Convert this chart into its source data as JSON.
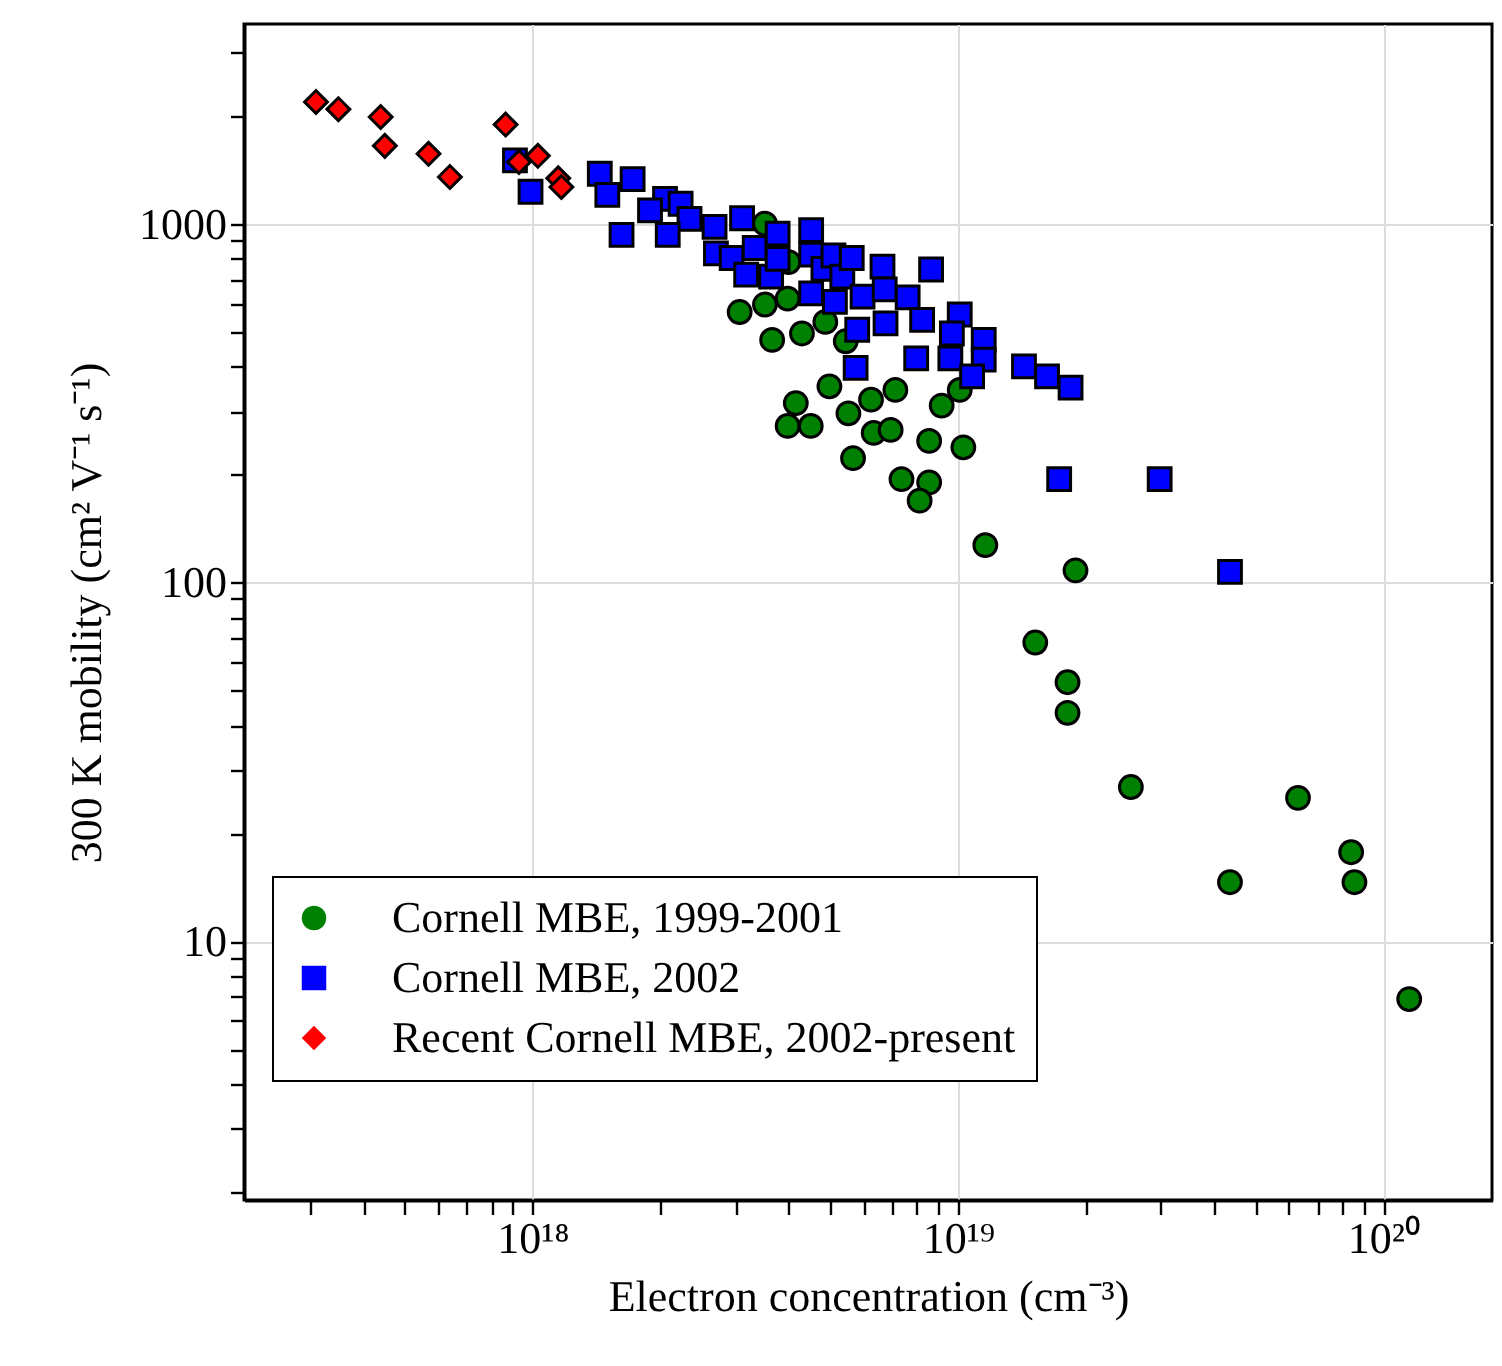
{
  "chart_data": {
    "type": "scatter",
    "xlabel": "Electron concentration (cm⁻³)",
    "ylabel": "300 K mobility (cm² V⁻¹ s⁻¹)",
    "log": "xy",
    "grid": true,
    "legend": "bottom left",
    "xlim": [
      2.1e+17,
      1.8e+20
    ],
    "ylim": [
      1.9,
      3600
    ],
    "xticks": [
      {
        "value": 3e+17,
        "label": null
      },
      {
        "value": 4e+17,
        "label": null
      },
      {
        "value": 5e+17,
        "label": null
      },
      {
        "value": 6e+17,
        "label": null
      },
      {
        "value": 7e+17,
        "label": null
      },
      {
        "value": 8e+17,
        "label": null
      },
      {
        "value": 9e+17,
        "label": null
      },
      {
        "value": 1e+18,
        "label": "10¹⁸"
      },
      {
        "value": 2e+18,
        "label": null
      },
      {
        "value": 3e+18,
        "label": null
      },
      {
        "value": 4e+18,
        "label": null
      },
      {
        "value": 5e+18,
        "label": null
      },
      {
        "value": 6e+18,
        "label": null
      },
      {
        "value": 7e+18,
        "label": null
      },
      {
        "value": 8e+18,
        "label": null
      },
      {
        "value": 9e+18,
        "label": null
      },
      {
        "value": 1e+19,
        "label": "10¹⁹"
      },
      {
        "value": 2e+19,
        "label": null
      },
      {
        "value": 3e+19,
        "label": null
      },
      {
        "value": 4e+19,
        "label": null
      },
      {
        "value": 5e+19,
        "label": null
      },
      {
        "value": 6e+19,
        "label": null
      },
      {
        "value": 7e+19,
        "label": null
      },
      {
        "value": 8e+19,
        "label": null
      },
      {
        "value": 9e+19,
        "label": null
      },
      {
        "value": 1e+20,
        "label": "10²⁰"
      }
    ],
    "yticks": [
      {
        "value": 2,
        "label": null
      },
      {
        "value": 3,
        "label": null
      },
      {
        "value": 4,
        "label": null
      },
      {
        "value": 5,
        "label": null
      },
      {
        "value": 6,
        "label": null
      },
      {
        "value": 7,
        "label": null
      },
      {
        "value": 8,
        "label": null
      },
      {
        "value": 9,
        "label": null
      },
      10,
      {
        "value": 20,
        "label": null
      },
      {
        "value": 30,
        "label": null
      },
      {
        "value": 40,
        "label": null
      },
      {
        "value": 50,
        "label": null
      },
      {
        "value": 60,
        "label": null
      },
      {
        "value": 70,
        "label": null
      },
      {
        "value": 80,
        "label": null
      },
      {
        "value": 90,
        "label": null
      },
      100,
      {
        "value": 200,
        "label": null
      },
      {
        "value": 300,
        "label": null
      },
      {
        "value": 400,
        "label": null
      },
      {
        "value": 500,
        "label": null
      },
      {
        "value": 600,
        "label": null
      },
      {
        "value": 700,
        "label": null
      },
      {
        "value": 800,
        "label": null
      },
      {
        "value": 900,
        "label": null
      },
      1000,
      {
        "value": 2000,
        "label": null
      },
      {
        "value": 3000,
        "label": null
      }
    ],
    "series": [
      {
        "name": "Cornell MBE, 1999-2001",
        "color": "#008000",
        "marker": "circle",
        "x": [
          3.52e+18,
          4e+18,
          3.07e+18,
          3.52e+18,
          3.98e+18,
          3.66e+18,
          4.3e+18,
          4.88e+18,
          5.45e+18,
          4.16e+18,
          3.98e+18,
          4.51e+18,
          4.99e+18,
          5.53e+18,
          6.25e+18,
          7.13e+18,
          6.34e+18,
          6.95e+18,
          5.67e+18,
          8.56e+18,
          9.16e+18,
          1.01e+19,
          1.03e+19,
          7.37e+18,
          8.56e+18,
          8.13e+18,
          1.16e+19,
          1.89e+19,
          1.52e+19,
          1.81e+19,
          1.81e+19,
          2.55e+19,
          6.3e+19,
          8.4e+19,
          8.55e+19,
          4.36e+19,
          1.15e+20
        ],
        "values": [
          1000,
          781,
          567,
          595,
          618,
          474,
          494,
          532,
          470,
          316,
          273,
          273,
          352,
          296,
          323,
          344,
          261,
          266,
          222,
          248,
          311,
          344,
          238,
          194,
          190,
          169,
          127,
          108,
          68,
          52.7,
          43.3,
          26.9,
          25.1,
          17.7,
          14.6,
          14.6,
          6.9
        ]
      },
      {
        "name": "Cornell MBE, 2002",
        "color": "#0000ff",
        "marker": "square",
        "x": [
          9.1e+17,
          9.9e+17,
          1.44e+18,
          1.5e+18,
          1.72e+18,
          1.62e+18,
          2.05e+18,
          2.23e+18,
          1.89e+18,
          2.34e+18,
          2.08e+18,
          2.68e+18,
          3.11e+18,
          2.7e+18,
          2.94e+18,
          3.18e+18,
          3.33e+18,
          3.64e+18,
          3.77e+18,
          3.77e+18,
          4.52e+18,
          4.52e+18,
          4.83e+18,
          5.1e+18,
          5.35e+18,
          5.63e+18,
          4.52e+18,
          5.14e+18,
          5.97e+18,
          5.8e+18,
          5.75e+18,
          6.65e+18,
          8.65e+18,
          6.73e+18,
          7.62e+18,
          6.76e+18,
          8.24e+18,
          1.01e+19,
          9.68e+18,
          1.15e+19,
          1.15e+19,
          7.98e+18,
          9.6e+18,
          1.08e+19,
          1.43e+19,
          1.62e+19,
          1.84e+19,
          1.73e+19,
          2.98e+19,
          4.36e+19
        ],
        "values": [
          1500,
          1227,
          1377,
          1203,
          1330,
          930,
          1172,
          1136,
          1089,
          1031,
          930,
          979,
          1035,
          826,
          802,
          721,
          855,
          712,
          938,
          797,
          959,
          819,
          748,
          815,
          712,
          802,
          639,
          605,
          626,
          506,
          396,
          759,
          745,
          656,
          623,
          527,
          539,
          558,
          494,
          474,
          418,
          421,
          421,
          375,
          400,
          375,
          349,
          194,
          194,
          107
        ]
      },
      {
        "name": "Recent Cornell MBE, 2002-present",
        "color": "#ff0000",
        "marker": "diamond",
        "x": [
          3.1e+17,
          3.5e+17,
          4.4e+17,
          4.5e+17,
          5.7e+17,
          6.4e+17,
          8.65e+17,
          9.3e+17,
          1.03e+18,
          1.15e+18,
          1.17e+18
        ],
        "values": [
          2183,
          2084,
          1982,
          1647,
          1565,
          1349,
          1888,
          1485,
          1545,
          1337,
          1265
        ]
      }
    ]
  }
}
